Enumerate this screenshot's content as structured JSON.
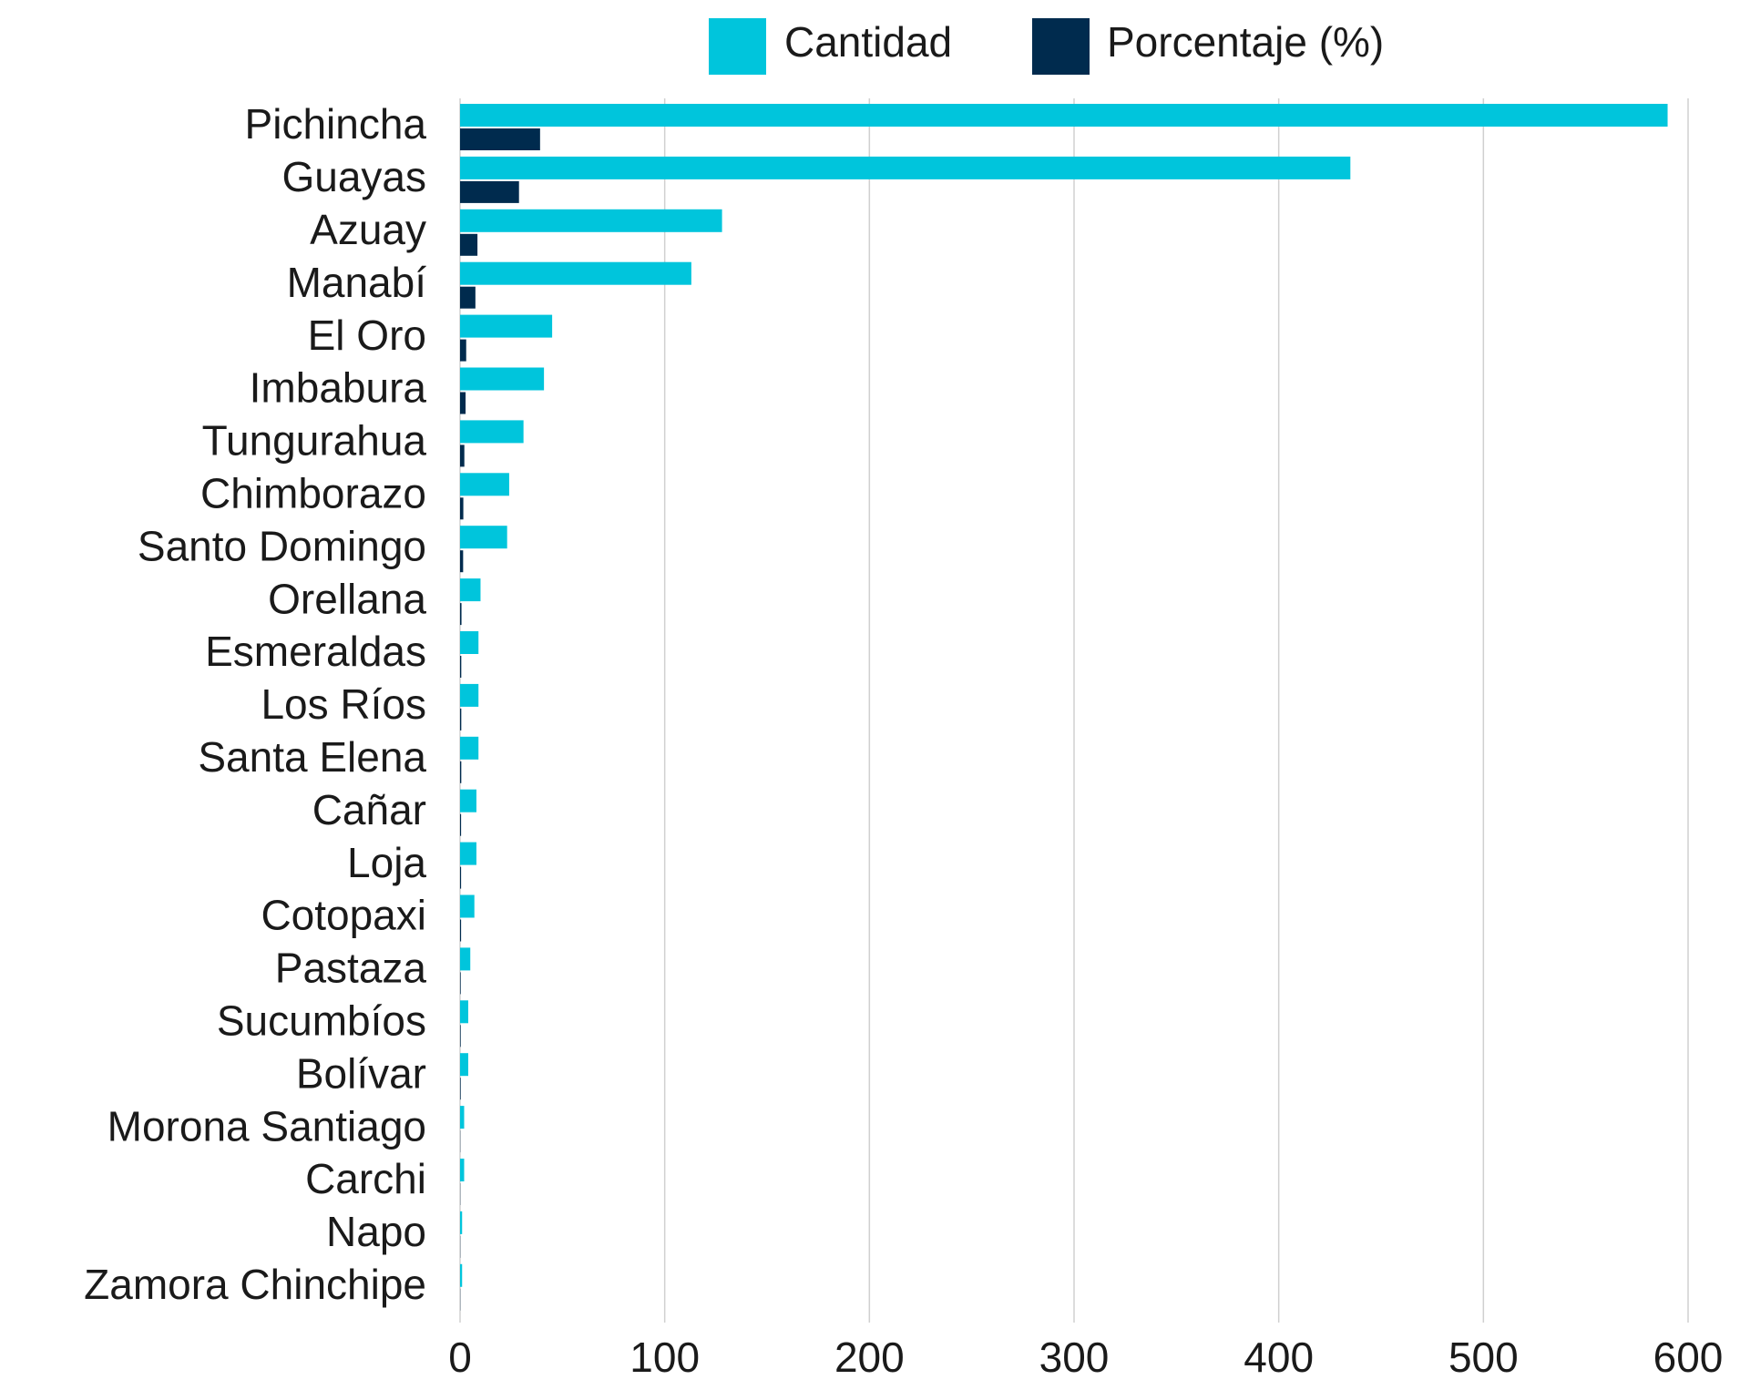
{
  "chart_data": {
    "type": "barh",
    "categories": [
      "Pichincha",
      "Guayas",
      "Azuay",
      "Manabí",
      "El Oro",
      "Imbabura",
      "Tungurahua",
      "Chimborazo",
      "Santo Domingo",
      "Orellana",
      "Esmeraldas",
      "Los Ríos",
      "Santa Elena",
      "Cañar",
      "Loja",
      "Cotopaxi",
      "Pastaza",
      "Sucumbíos",
      "Bolívar",
      "Morona Santiago",
      "Carchi",
      "Napo",
      "Zamora Chinchipe"
    ],
    "series": [
      {
        "name": "Cantidad",
        "color": "#00c5dc",
        "values": [
          590,
          435,
          128,
          113,
          45,
          41,
          31,
          24,
          23,
          10,
          9,
          9,
          9,
          8,
          8,
          7,
          5,
          4,
          4,
          2,
          2,
          1,
          1
        ]
      },
      {
        "name": "Porcentaje (%)",
        "color": "#002b4e",
        "values": [
          39.1,
          28.8,
          8.5,
          7.5,
          3.0,
          2.7,
          2.1,
          1.6,
          1.5,
          0.7,
          0.6,
          0.6,
          0.6,
          0.5,
          0.5,
          0.5,
          0.3,
          0.3,
          0.3,
          0.1,
          0.1,
          0.1,
          0.1
        ]
      }
    ],
    "xlim": [
      0,
      600
    ],
    "xticks": [
      0,
      100,
      200,
      300,
      400,
      500,
      600
    ],
    "grid": true,
    "legend": "top"
  }
}
